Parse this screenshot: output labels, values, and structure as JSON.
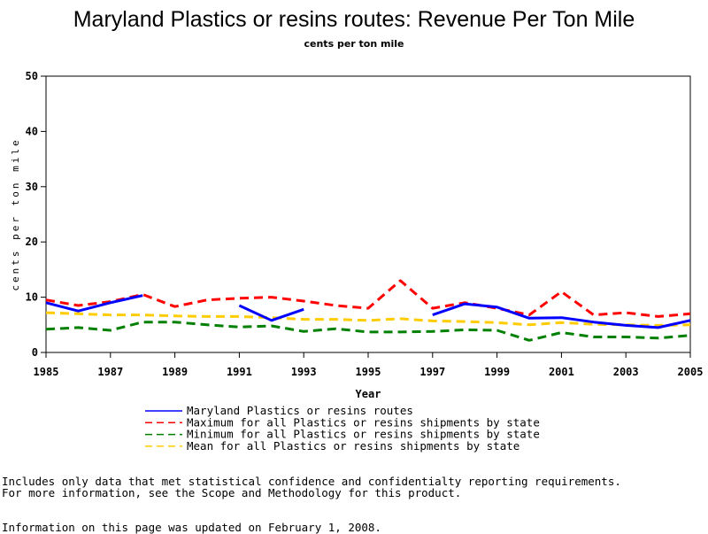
{
  "chart_data": {
    "type": "line",
    "title": "Maryland Plastics or resins routes: Revenue Per Ton Mile",
    "subtitle": "cents per ton mile",
    "xlabel": "Year",
    "ylabel": "cents per ton mile",
    "xlim": [
      1985,
      2005
    ],
    "ylim": [
      0,
      50
    ],
    "x_ticks": [
      "1985",
      "1987",
      "1989",
      "1991",
      "1993",
      "1995",
      "1997",
      "1999",
      "2001",
      "2003",
      "2005"
    ],
    "y_ticks": [
      "0",
      "10",
      "20",
      "30",
      "40",
      "50"
    ],
    "x": [
      1985,
      1986,
      1987,
      1988,
      1989,
      1990,
      1991,
      1992,
      1993,
      1994,
      1995,
      1996,
      1997,
      1998,
      1999,
      2000,
      2001,
      2002,
      2003,
      2004,
      2005
    ],
    "series": [
      {
        "name": "Maryland Plastics or resins routes",
        "color": "#0000ff",
        "dash": "solid",
        "values": [
          9.0,
          7.5,
          9.0,
          10.3,
          null,
          null,
          8.5,
          5.8,
          7.8,
          null,
          null,
          null,
          6.8,
          8.8,
          8.2,
          6.2,
          6.3,
          5.5,
          4.9,
          4.5,
          5.8
        ]
      },
      {
        "name": "Maximum for all Plastics or resins shipments by state",
        "color": "#ff0000",
        "dash": "dashed",
        "values": [
          9.5,
          8.5,
          9.2,
          10.5,
          8.3,
          9.5,
          9.8,
          10.0,
          9.3,
          8.5,
          8.0,
          13.0,
          8.0,
          9.0,
          8.0,
          6.8,
          11.0,
          6.8,
          7.2,
          6.5,
          7.0
        ]
      },
      {
        "name": "Minimum for all Plastics or resins shipments by state",
        "color": "#008000",
        "dash": "dashed",
        "values": [
          4.2,
          4.5,
          4.0,
          5.5,
          5.5,
          5.0,
          4.6,
          4.8,
          3.8,
          4.3,
          3.7,
          3.7,
          3.8,
          4.1,
          4.0,
          2.2,
          3.6,
          2.8,
          2.8,
          2.6,
          3.1
        ]
      },
      {
        "name": "Mean for all Plastics or resins shipments by state",
        "color": "#ffcc00",
        "dash": "dashed",
        "values": [
          7.2,
          7.0,
          6.8,
          6.8,
          6.6,
          6.5,
          6.5,
          6.3,
          6.0,
          6.0,
          5.8,
          6.1,
          5.7,
          5.6,
          5.4,
          5.0,
          5.4,
          5.1,
          5.0,
          4.9,
          5.0
        ]
      }
    ],
    "legend_position": "bottom-center",
    "grid": false
  },
  "notes": {
    "line1": "Includes only data that met statistical confidence and confidentialty reporting requirements.",
    "line2": "For more information, see the Scope and Methodology for this product.",
    "updated": "Information on this page was updated on February 1, 2008."
  }
}
